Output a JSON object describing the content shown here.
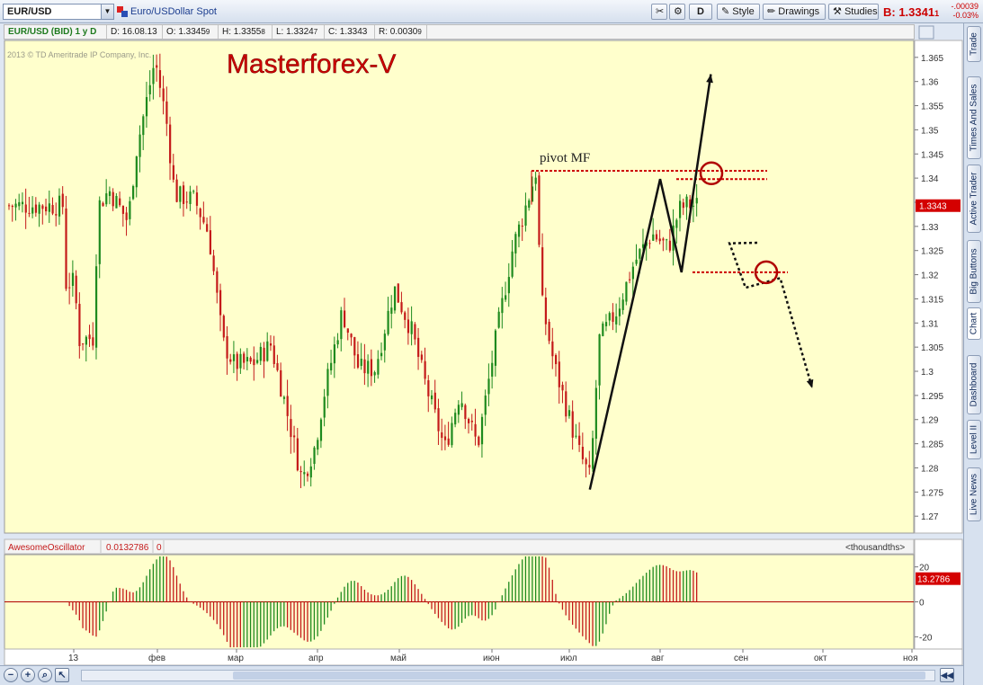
{
  "toolbar": {
    "symbol": "EUR/USD",
    "description": "Euro/USDollar Spot",
    "aggregation": "D",
    "style_label": "Style",
    "drawings_label": "Drawings",
    "studies_label": "Studies",
    "bid_label": "B: 1.3341",
    "bid_sub": "1",
    "change_abs": "-.00039",
    "change_pct": "-0.03%"
  },
  "infobar": {
    "title": "EUR/USD (BID) 1 y D",
    "date": "D: 16.08.13",
    "open": "O: 1.3345",
    "open_sub": "9",
    "high": "H: 1.3355",
    "high_sub": "8",
    "low": "L: 1.3324",
    "low_sub": "7",
    "close": "C: 1.3343",
    "range": "R: 0.0030",
    "range_sub": "9"
  },
  "watermark": "2013 © TD Ameritrade IP Company, Inc.",
  "annotation_title": "Masterforex-V",
  "pivot_label": "pivot MF",
  "last_price_label": "1.3343",
  "oscillator": {
    "name": "AwesomeOscillator",
    "value": "0.0132786",
    "param": "0",
    "units": "<thousandths>",
    "last_label": "13.2786",
    "ticks": [
      "20",
      "0",
      "-20"
    ]
  },
  "sidetabs": [
    "Trade",
    "Times And Sales",
    "Active Trader",
    "Big Buttons",
    "Chart",
    "Dashboard",
    "Level II",
    "Live News"
  ],
  "colors": {
    "chart_bg": "#ffffcc",
    "up": "#1e8a1e",
    "down": "#c41a1a",
    "pivot": "#cc0000",
    "title": "#cc0000"
  },
  "chart_data": [
    {
      "type": "candlestick",
      "title": "EUR/USD (BID) 1 y D",
      "x_tick_labels": [
        "13",
        "фев",
        "мар",
        "апр",
        "май",
        "июн",
        "июл",
        "авг",
        "сен",
        "окт",
        "ноя"
      ],
      "y_tick_labels": [
        "1.365",
        "1.36",
        "1.355",
        "1.35",
        "1.345",
        "1.34",
        "1.335",
        "1.33",
        "1.325",
        "1.32",
        "1.315",
        "1.31",
        "1.305",
        "1.3",
        "1.295",
        "1.29",
        "1.285",
        "1.28",
        "1.275",
        "1.27"
      ],
      "ylim": [
        1.2665,
        1.3685
      ],
      "close_path": [
        {
          "x": "2012-12-28",
          "y": 1.318
        },
        {
          "x": "2013-01-02",
          "y": 1.3185
        },
        {
          "x": "2013-01-04",
          "y": 1.3065
        },
        {
          "x": "2013-01-09",
          "y": 1.307
        },
        {
          "x": "2013-01-11",
          "y": 1.3343
        },
        {
          "x": "2013-01-15",
          "y": 1.3375
        },
        {
          "x": "2013-01-22",
          "y": 1.331
        },
        {
          "x": "2013-01-25",
          "y": 1.3455
        },
        {
          "x": "2013-02-01",
          "y": 1.3645
        },
        {
          "x": "2013-02-05",
          "y": 1.352
        },
        {
          "x": "2013-02-08",
          "y": 1.3365
        },
        {
          "x": "2013-02-15",
          "y": 1.3355
        },
        {
          "x": "2013-02-20",
          "y": 1.3285
        },
        {
          "x": "2013-02-25",
          "y": 1.306
        },
        {
          "x": "2013-03-01",
          "y": 1.3015
        },
        {
          "x": "2013-03-08",
          "y": 1.3015
        },
        {
          "x": "2013-03-15",
          "y": 1.3055
        },
        {
          "x": "2013-03-20",
          "y": 1.2945
        },
        {
          "x": "2013-03-27",
          "y": 1.2775
        },
        {
          "x": "2013-04-01",
          "y": 1.2845
        },
        {
          "x": "2013-04-04",
          "y": 1.2945
        },
        {
          "x": "2013-04-11",
          "y": 1.3125
        },
        {
          "x": "2013-04-17",
          "y": 1.3005
        },
        {
          "x": "2013-04-23",
          "y": 1.3005
        },
        {
          "x": "2013-04-30",
          "y": 1.3172
        },
        {
          "x": "2013-05-06",
          "y": 1.3082
        },
        {
          "x": "2013-05-10",
          "y": 1.2985
        },
        {
          "x": "2013-05-17",
          "y": 1.2839
        },
        {
          "x": "2013-05-22",
          "y": 1.2955
        },
        {
          "x": "2013-05-28",
          "y": 1.2845
        },
        {
          "x": "2013-06-04",
          "y": 1.3085
        },
        {
          "x": "2013-06-10",
          "y": 1.3255
        },
        {
          "x": "2013-06-17",
          "y": 1.3375
        },
        {
          "x": "2013-06-19",
          "y": 1.3415
        },
        {
          "x": "2013-06-21",
          "y": 1.315
        },
        {
          "x": "2013-06-26",
          "y": 1.3015
        },
        {
          "x": "2013-07-05",
          "y": 1.2835
        },
        {
          "x": "2013-07-09",
          "y": 1.2777
        },
        {
          "x": "2013-07-12",
          "y": 1.3065
        },
        {
          "x": "2013-07-18",
          "y": 1.3125
        },
        {
          "x": "2013-07-24",
          "y": 1.3225
        },
        {
          "x": "2013-07-30",
          "y": 1.3285
        },
        {
          "x": "2013-08-05",
          "y": 1.3255
        },
        {
          "x": "2013-08-09",
          "y": 1.3335
        },
        {
          "x": "2013-08-12",
          "y": 1.3345
        },
        {
          "x": "2013-08-16",
          "y": 1.3343
        }
      ],
      "last_price": 1.3343,
      "annotations": {
        "pivot_level": 1.3415,
        "secondary_level": 1.3398,
        "support_level": 1.3205,
        "zigzag": [
          {
            "x": "2013-07-08",
            "y": 1.2755
          },
          {
            "x": "2013-08-01",
            "y": 1.3398
          },
          {
            "x": "2013-08-09",
            "y": 1.3205
          },
          {
            "x": "2013-08-20",
            "y": 1.3615
          }
        ],
        "projection": [
          {
            "x": "2013-08-27",
            "y": 1.3265
          },
          {
            "x": "2013-09-02",
            "y": 1.3173
          },
          {
            "x": "2013-09-15",
            "y": 1.3193
          },
          {
            "x": "2013-09-27",
            "y": 1.2965
          }
        ]
      }
    },
    {
      "type": "histogram",
      "title": "AwesomeOscillator",
      "ylim": [
        -27,
        27
      ],
      "y_ticks": [
        20,
        0,
        -20
      ],
      "last_value": 13.2786
    }
  ]
}
